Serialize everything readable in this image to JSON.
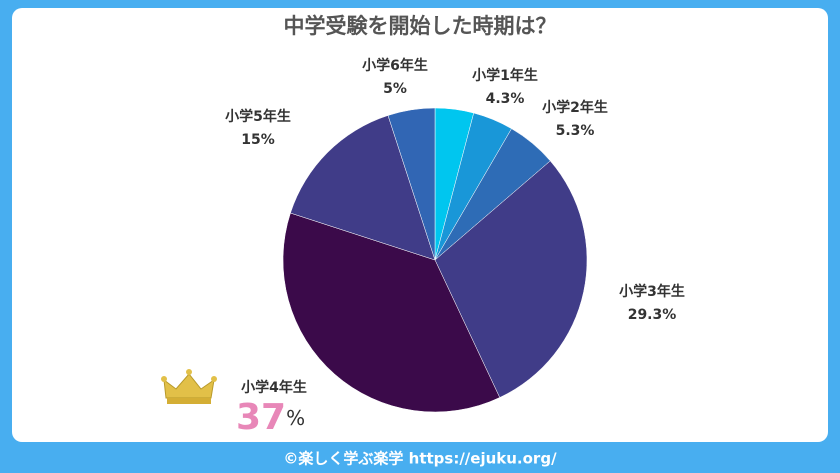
{
  "chart_data": {
    "type": "pie",
    "title": "中学受験を開始した時期は？",
    "categories": [
      null,
      "小学1年生",
      "小学2年生",
      "小学3年生",
      "小学4年生",
      "小学5年生",
      "小学6年生"
    ],
    "values": [
      4.1,
      4.3,
      5.3,
      29.3,
      37,
      15,
      5
    ],
    "value_labels": [
      null,
      "4.3%",
      "5.3%",
      "29.3%",
      "37%",
      "15%",
      "5%"
    ],
    "colors": [
      "#00c6ef",
      "#1997d8",
      "#2e6cb6",
      "#403c88",
      "#3b0a4a",
      "#403c88",
      "#3166b4"
    ]
  },
  "footer": "©楽しく学ぶ楽学 https://ejuku.org/"
}
